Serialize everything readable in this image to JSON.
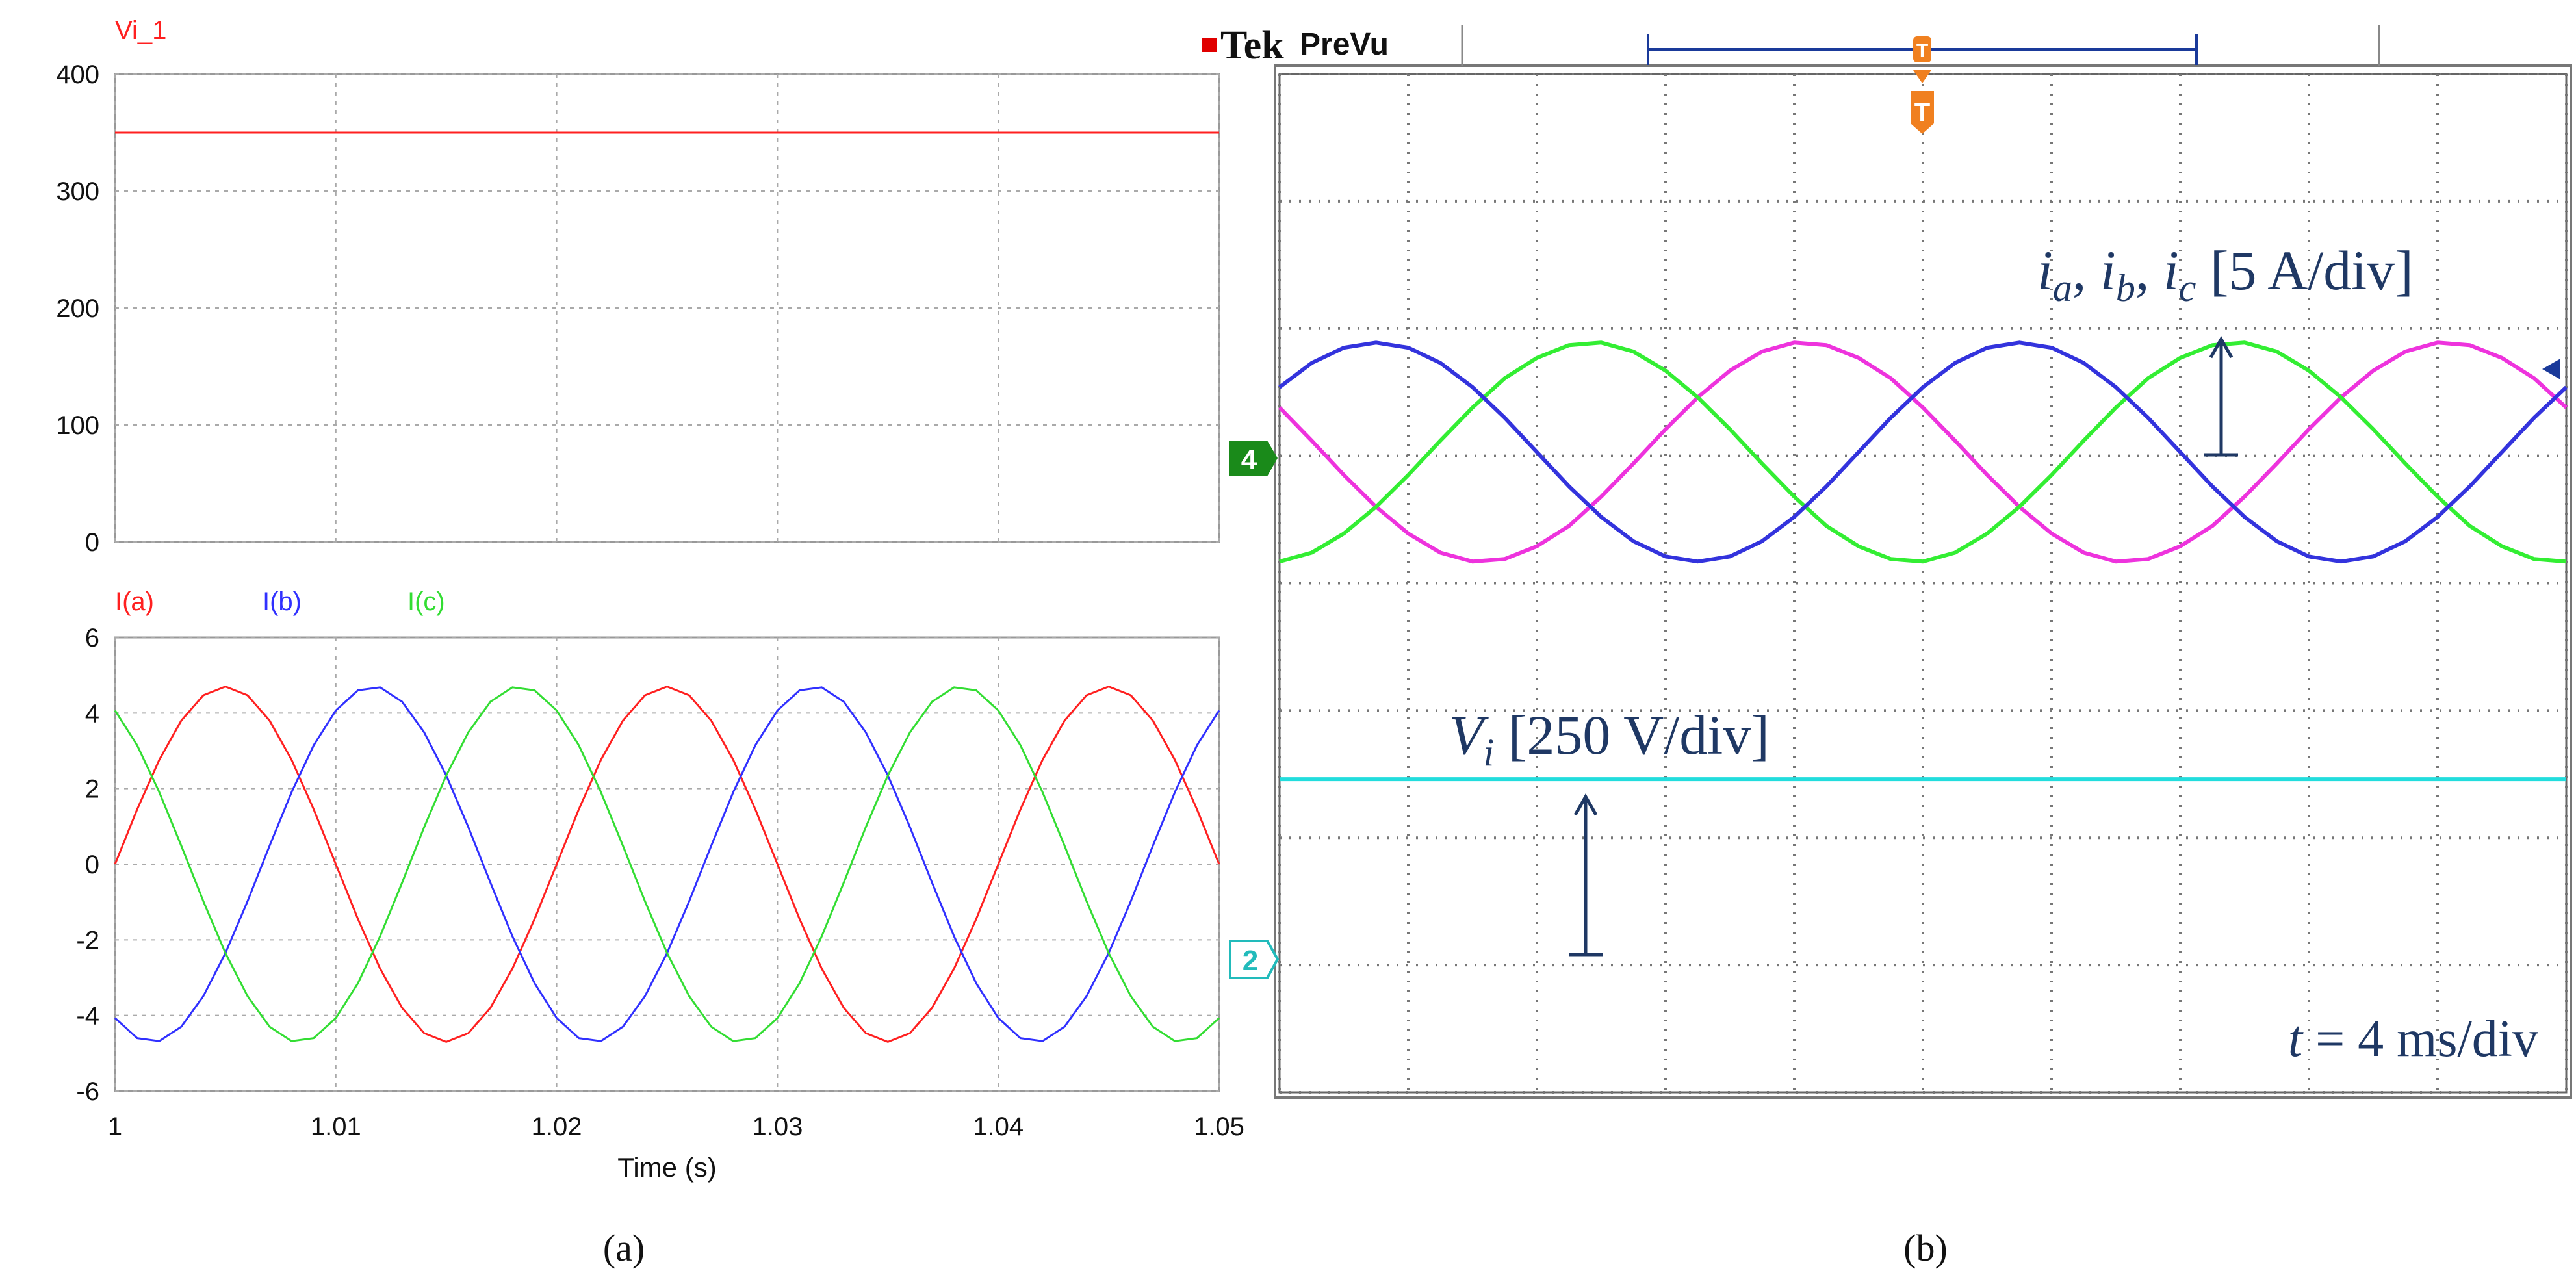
{
  "captions": [
    "(a)",
    "(b)"
  ],
  "chart_data": [
    {
      "type": "line",
      "tick_labels": "y",
      "x": [
        1,
        1.05
      ],
      "xlim": [
        1,
        1.05
      ],
      "xticks": [
        1,
        1.01,
        1.02,
        1.03,
        1.04,
        1.05
      ],
      "ylim": [
        0,
        400
      ],
      "yticks": [
        0,
        100,
        200,
        300,
        400
      ],
      "grid": true,
      "series": [
        {
          "name": "Vi_1",
          "color": "#ff2020",
          "values": [
            350,
            350
          ]
        }
      ]
    },
    {
      "type": "line",
      "tick_labels": "xy",
      "xlabel": "Time (s)",
      "x": [
        1,
        1.001,
        1.002,
        1.003,
        1.004,
        1.005,
        1.006,
        1.007,
        1.008,
        1.009,
        1.01,
        1.011,
        1.012,
        1.013,
        1.014,
        1.015,
        1.016,
        1.017,
        1.018,
        1.019,
        1.02,
        1.021,
        1.022,
        1.023,
        1.024,
        1.025,
        1.026,
        1.027,
        1.028,
        1.029,
        1.03,
        1.031,
        1.032,
        1.033,
        1.034,
        1.035,
        1.036,
        1.037,
        1.038,
        1.039,
        1.04,
        1.041,
        1.042,
        1.043,
        1.044,
        1.045,
        1.046,
        1.047,
        1.048,
        1.049,
        1.05
      ],
      "xlim": [
        1,
        1.05
      ],
      "xticks": [
        1,
        1.01,
        1.02,
        1.03,
        1.04,
        1.05
      ],
      "ylim": [
        -6,
        6
      ],
      "yticks": [
        -6,
        -4,
        -2,
        0,
        2,
        4,
        6
      ],
      "grid": true,
      "series": [
        {
          "name": "I(a)",
          "color": "#ff2020",
          "values": [
            0,
            1.45,
            2.76,
            3.8,
            4.47,
            4.7,
            4.47,
            3.8,
            2.76,
            1.45,
            0,
            -1.45,
            -2.76,
            -3.8,
            -4.47,
            -4.7,
            -4.47,
            -3.8,
            -2.76,
            -1.45,
            0,
            1.45,
            2.76,
            3.8,
            4.47,
            4.7,
            4.47,
            3.8,
            2.76,
            1.45,
            0,
            -1.45,
            -2.76,
            -3.8,
            -4.47,
            -4.7,
            -4.47,
            -3.8,
            -2.76,
            -1.45,
            0,
            1.45,
            2.76,
            3.8,
            4.47,
            4.7,
            4.47,
            3.8,
            2.76,
            1.45,
            0
          ]
        },
        {
          "name": "I(b)",
          "color": "#3030ff",
          "values": [
            -4.07,
            -4.6,
            -4.68,
            -4.3,
            -3.49,
            -2.35,
            -0.98,
            0.49,
            1.91,
            3.15,
            4.07,
            4.6,
            4.68,
            4.3,
            3.49,
            2.35,
            0.98,
            -0.49,
            -1.91,
            -3.15,
            -4.07,
            -4.6,
            -4.68,
            -4.3,
            -3.49,
            -2.35,
            -0.98,
            0.49,
            1.91,
            3.15,
            4.07,
            4.6,
            4.68,
            4.3,
            3.49,
            2.35,
            0.98,
            -0.49,
            -1.91,
            -3.15,
            -4.07,
            -4.6,
            -4.68,
            -4.3,
            -3.49,
            -2.35,
            -0.98,
            0.49,
            1.91,
            3.15,
            4.07
          ]
        },
        {
          "name": "I(c)",
          "color": "#33dd33",
          "values": [
            4.07,
            3.15,
            1.91,
            0.49,
            -0.98,
            -2.35,
            -3.49,
            -4.3,
            -4.68,
            -4.6,
            -4.07,
            -3.15,
            -1.91,
            -0.49,
            0.98,
            2.35,
            3.49,
            4.3,
            4.68,
            4.6,
            4.07,
            3.15,
            1.91,
            0.49,
            -0.98,
            -2.35,
            -3.49,
            -4.3,
            -4.68,
            -4.6,
            -4.07,
            -3.15,
            -1.91,
            -0.49,
            0.98,
            2.35,
            3.49,
            4.3,
            4.68,
            4.6,
            4.07,
            3.15,
            1.91,
            0.49,
            -0.98,
            -2.35,
            -3.49,
            -4.3,
            -4.68,
            -4.6,
            -4.07
          ]
        }
      ]
    },
    {
      "type": "line",
      "tick_labels": "none",
      "brand": "Tek",
      "mode": "PreVu",
      "trigger": "T",
      "channel_markers": [
        "4",
        "2"
      ],
      "annotations": {
        "currents": [
          "i",
          "a",
          ", ",
          "i",
          "b",
          ", ",
          "i",
          "c",
          " [5 A/div]"
        ],
        "voltage": [
          "V",
          "i",
          " [250 V/div]"
        ],
        "timebase": [
          "t",
          " = 4 ms/div"
        ]
      },
      "x": [
        0,
        0.25,
        0.5,
        0.75,
        1,
        1.25,
        1.5,
        1.75,
        2,
        2.25,
        2.5,
        2.75,
        3,
        3.25,
        3.5,
        3.75,
        4,
        4.25,
        4.5,
        4.75,
        5,
        5.25,
        5.5,
        5.75,
        6,
        6.25,
        6.5,
        6.75,
        7,
        7.25,
        7.5,
        7.75,
        8,
        8.25,
        8.5,
        8.75,
        9,
        9.25,
        9.5,
        9.75,
        10
      ],
      "xlim": [
        0,
        10
      ],
      "xticks": [
        0,
        1,
        2,
        3,
        4,
        5,
        6,
        7,
        8,
        9,
        10
      ],
      "ylim": [
        -4,
        4
      ],
      "yticks": [
        -4,
        -3,
        -2,
        -1,
        0,
        1,
        2,
        3,
        4
      ],
      "grid": true,
      "series": [
        {
          "color": "#ee33dd",
          "values": [
            1.38,
            1.12,
            0.85,
            0.6,
            0.39,
            0.24,
            0.17,
            0.19,
            0.29,
            0.45,
            0.68,
            0.94,
            1.21,
            1.46,
            1.67,
            1.82,
            1.89,
            1.87,
            1.77,
            1.61,
            1.38,
            1.12,
            0.85,
            0.6,
            0.39,
            0.24,
            0.17,
            0.19,
            0.29,
            0.45,
            0.68,
            0.94,
            1.21,
            1.46,
            1.67,
            1.82,
            1.89,
            1.87,
            1.77,
            1.61,
            1.38
          ]
        },
        {
          "color": "#33ee33",
          "values": [
            0.17,
            0.24,
            0.39,
            0.6,
            0.85,
            1.12,
            1.38,
            1.61,
            1.77,
            1.87,
            1.89,
            1.82,
            1.67,
            1.46,
            1.21,
            0.94,
            0.68,
            0.45,
            0.29,
            0.19,
            0.17,
            0.24,
            0.39,
            0.6,
            0.85,
            1.12,
            1.38,
            1.61,
            1.77,
            1.87,
            1.89,
            1.82,
            1.67,
            1.46,
            1.21,
            0.94,
            0.68,
            0.45,
            0.29,
            0.19,
            0.17
          ]
        },
        {
          "color": "#3333dd",
          "values": [
            1.54,
            1.73,
            1.85,
            1.89,
            1.85,
            1.73,
            1.54,
            1.3,
            1.03,
            0.76,
            0.52,
            0.33,
            0.21,
            0.17,
            0.21,
            0.33,
            0.52,
            0.76,
            1.03,
            1.3,
            1.54,
            1.73,
            1.85,
            1.89,
            1.85,
            1.73,
            1.54,
            1.3,
            1.03,
            0.76,
            0.52,
            0.33,
            0.21,
            0.17,
            0.21,
            0.33,
            0.52,
            0.76,
            1.03,
            1.3,
            1.54
          ]
        },
        {
          "color": "#22dddd",
          "x": [
            0,
            10
          ],
          "values": [
            -1.54,
            -1.54
          ]
        }
      ]
    }
  ]
}
